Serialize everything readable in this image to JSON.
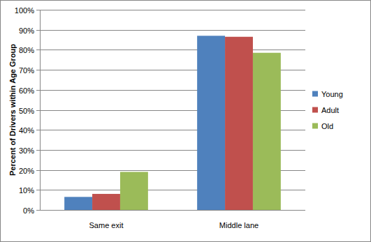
{
  "chart_data": {
    "type": "bar",
    "ylabel": "Percent of Drivers within Age Group",
    "categories": [
      "Same exit",
      "Middle lane"
    ],
    "series": [
      {
        "name": "Young",
        "color": "#4f81bd",
        "values": [
          6.5,
          87
        ]
      },
      {
        "name": "Adult",
        "color": "#c0504d",
        "values": [
          8,
          86.5
        ]
      },
      {
        "name": "Old",
        "color": "#9bbb59",
        "values": [
          19,
          78.5
        ]
      }
    ],
    "ylim": [
      0,
      100
    ],
    "yticks": [
      {
        "value": 0,
        "label": "0%"
      },
      {
        "value": 10,
        "label": "10%"
      },
      {
        "value": 20,
        "label": "20%"
      },
      {
        "value": 30,
        "label": "30%"
      },
      {
        "value": 40,
        "label": "40%"
      },
      {
        "value": 50,
        "label": "50%"
      },
      {
        "value": 60,
        "label": "60%"
      },
      {
        "value": 70,
        "label": "70%"
      },
      {
        "value": 80,
        "label": "80%"
      },
      {
        "value": 90,
        "label": "90%"
      },
      {
        "value": 100,
        "label": "100%"
      }
    ],
    "grid": true,
    "legend": "right"
  }
}
